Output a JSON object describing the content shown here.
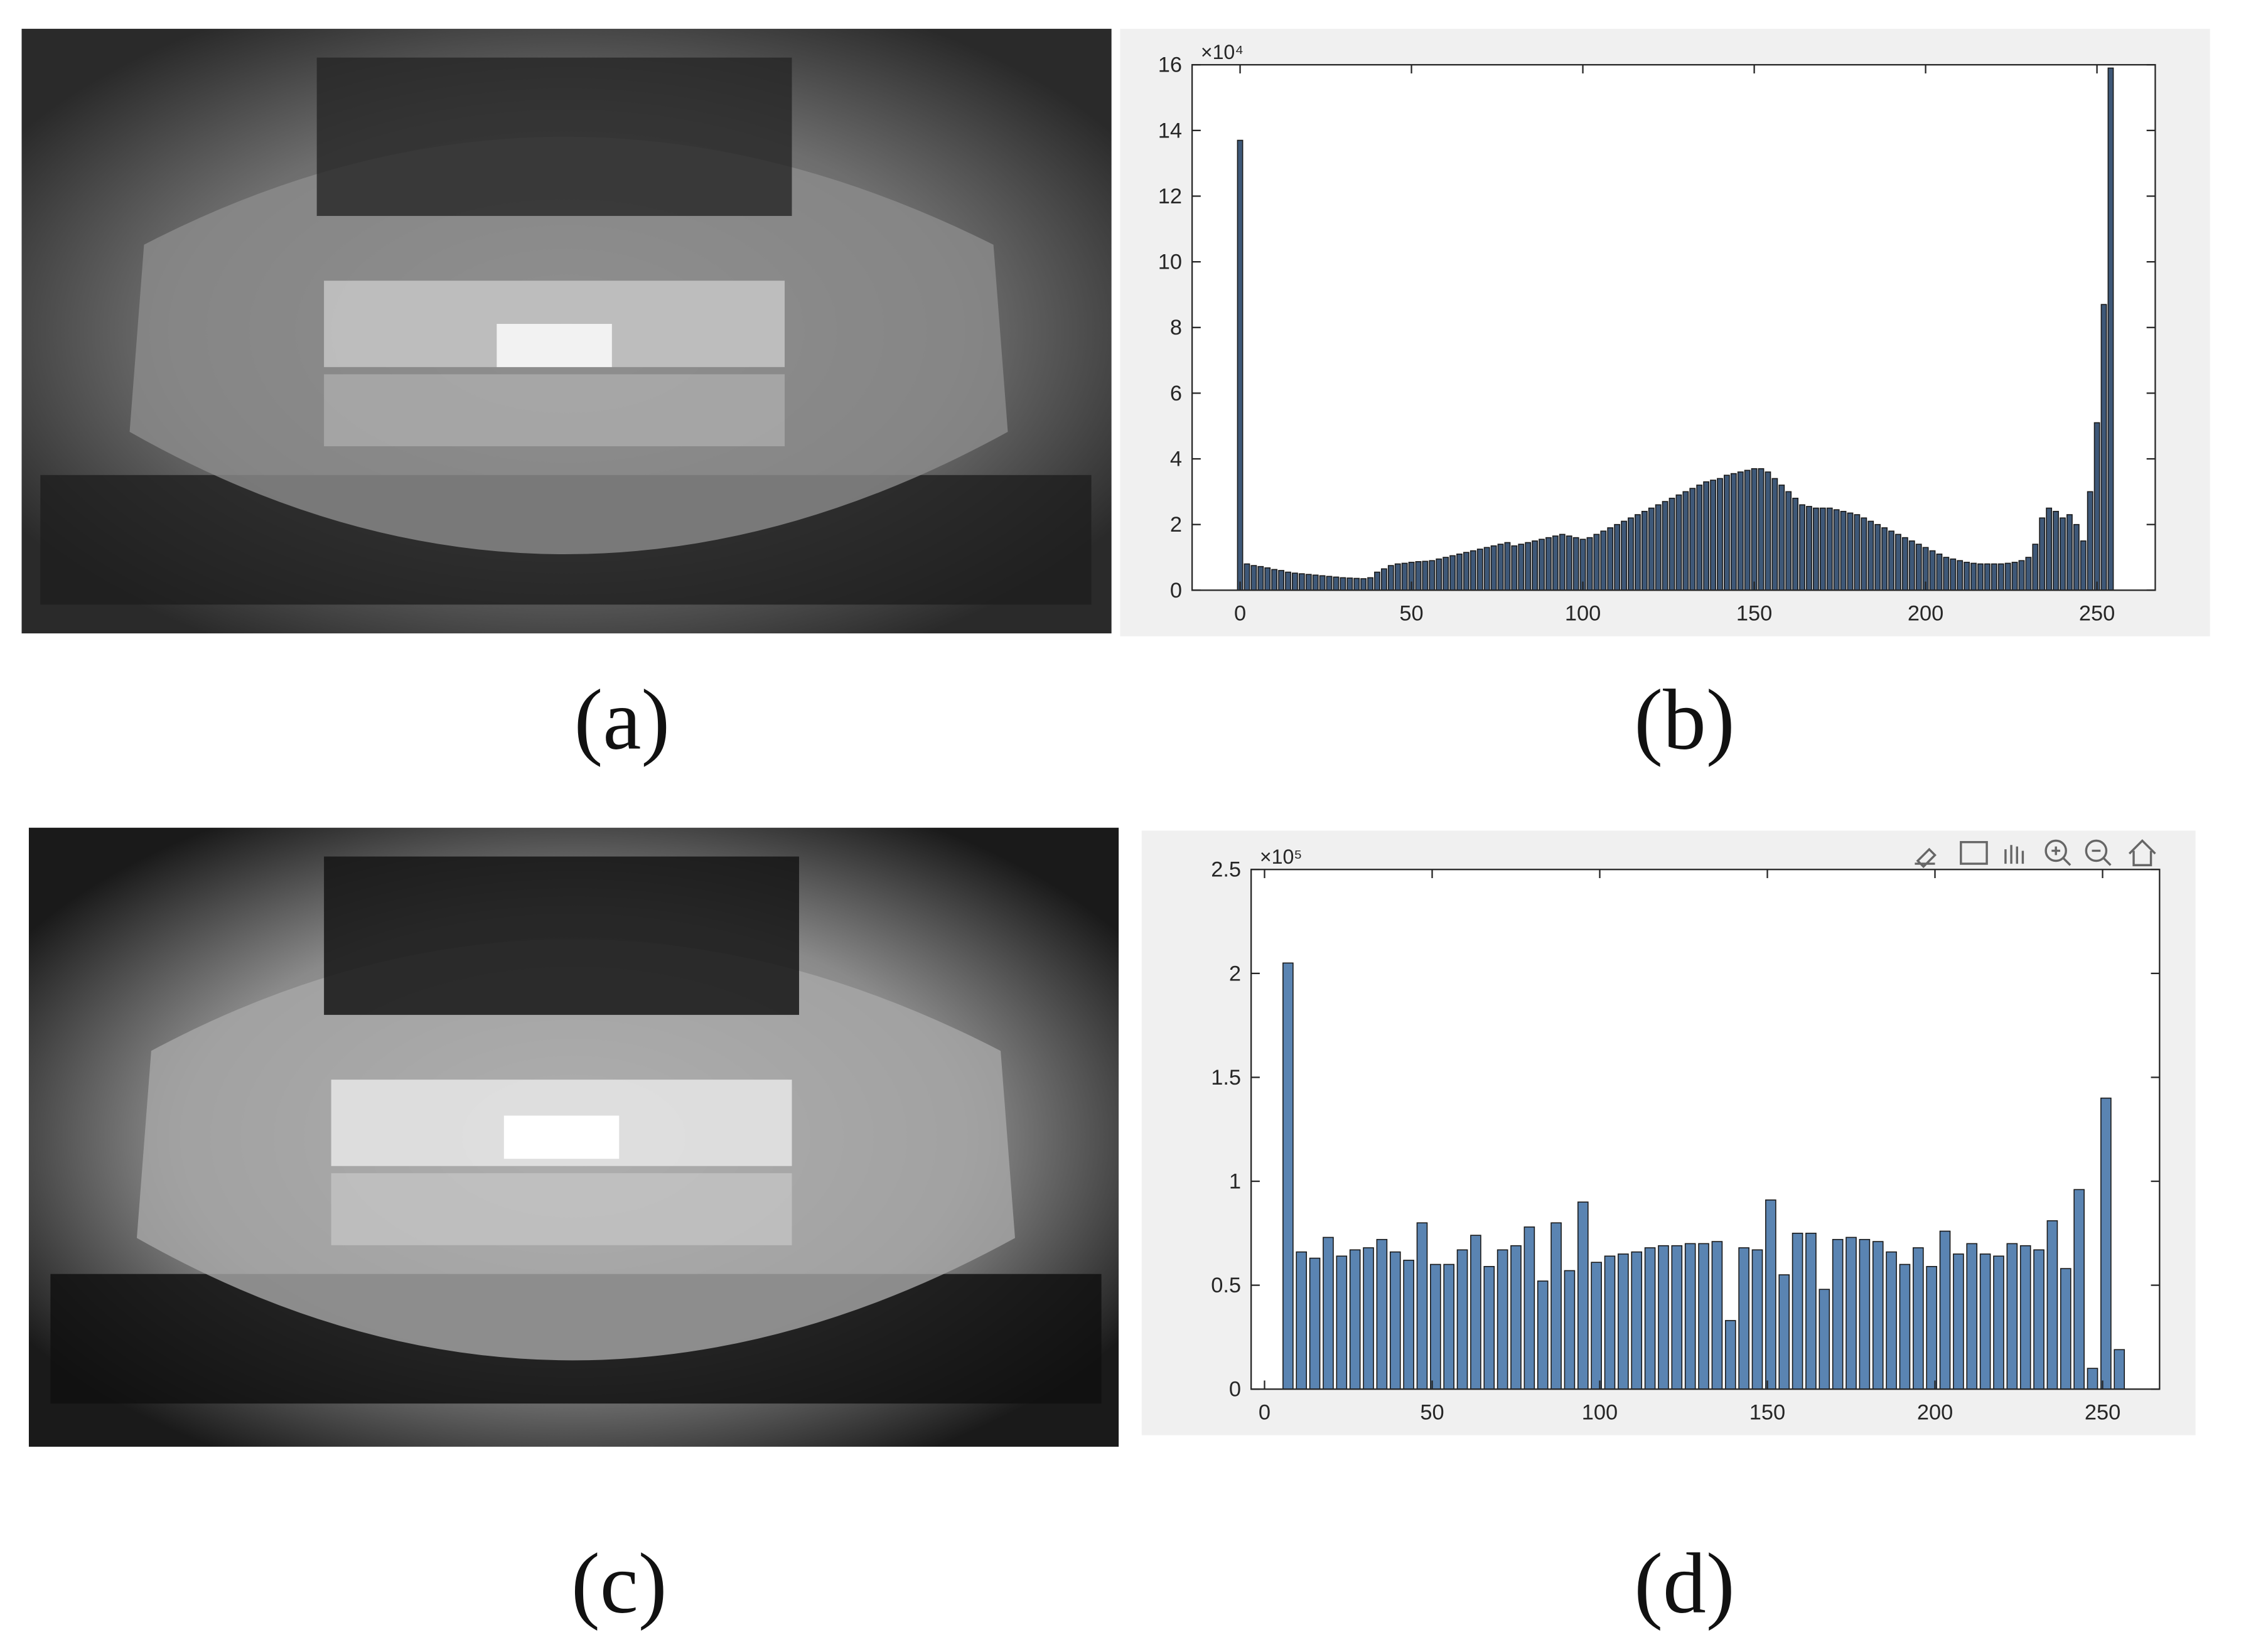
{
  "panels": {
    "labels": [
      "(a)",
      "(b)",
      "(c)",
      "(d)"
    ]
  },
  "chart_data": [
    {
      "type": "bar",
      "color": "#3e5878",
      "y_scale_label": "×10⁴",
      "x": [
        0,
        2,
        4,
        6,
        8,
        10,
        12,
        14,
        16,
        18,
        20,
        22,
        24,
        26,
        28,
        30,
        32,
        34,
        36,
        38,
        40,
        42,
        44,
        46,
        48,
        50,
        52,
        54,
        56,
        58,
        60,
        62,
        64,
        66,
        68,
        70,
        72,
        74,
        76,
        78,
        80,
        82,
        84,
        86,
        88,
        90,
        92,
        94,
        96,
        98,
        100,
        102,
        104,
        106,
        108,
        110,
        112,
        114,
        116,
        118,
        120,
        122,
        124,
        126,
        128,
        130,
        132,
        134,
        136,
        138,
        140,
        142,
        144,
        146,
        148,
        150,
        152,
        154,
        156,
        158,
        160,
        162,
        164,
        166,
        168,
        170,
        172,
        174,
        176,
        178,
        180,
        182,
        184,
        186,
        188,
        190,
        192,
        194,
        196,
        198,
        200,
        202,
        204,
        206,
        208,
        210,
        212,
        214,
        216,
        218,
        220,
        222,
        224,
        226,
        228,
        230,
        232,
        234,
        236,
        238,
        240,
        242,
        244,
        246,
        248,
        250,
        252,
        254
      ],
      "values": [
        13.7,
        0.8,
        0.75,
        0.72,
        0.68,
        0.63,
        0.6,
        0.55,
        0.52,
        0.5,
        0.48,
        0.46,
        0.44,
        0.42,
        0.4,
        0.38,
        0.37,
        0.36,
        0.35,
        0.38,
        0.55,
        0.65,
        0.75,
        0.8,
        0.82,
        0.85,
        0.87,
        0.88,
        0.9,
        0.95,
        1.0,
        1.05,
        1.1,
        1.15,
        1.2,
        1.25,
        1.3,
        1.35,
        1.4,
        1.45,
        1.35,
        1.4,
        1.45,
        1.5,
        1.55,
        1.6,
        1.65,
        1.7,
        1.65,
        1.6,
        1.55,
        1.6,
        1.7,
        1.8,
        1.9,
        2.0,
        2.1,
        2.2,
        2.3,
        2.4,
        2.5,
        2.6,
        2.7,
        2.8,
        2.9,
        3.0,
        3.1,
        3.2,
        3.3,
        3.35,
        3.4,
        3.5,
        3.55,
        3.6,
        3.65,
        3.7,
        3.7,
        3.6,
        3.4,
        3.2,
        3.0,
        2.8,
        2.6,
        2.55,
        2.5,
        2.5,
        2.5,
        2.45,
        2.4,
        2.35,
        2.3,
        2.2,
        2.1,
        2.0,
        1.9,
        1.8,
        1.7,
        1.6,
        1.5,
        1.4,
        1.3,
        1.2,
        1.1,
        1.0,
        0.95,
        0.9,
        0.85,
        0.82,
        0.8,
        0.8,
        0.8,
        0.8,
        0.82,
        0.85,
        0.9,
        1.0,
        1.4,
        2.2,
        2.5,
        2.4,
        2.2,
        2.3,
        2.0,
        1.5,
        3.0,
        5.1,
        8.7,
        15.9
      ],
      "xlim": [
        -14,
        267
      ],
      "ylim": [
        0,
        16
      ],
      "xticks": [
        0,
        50,
        100,
        150,
        200,
        250
      ],
      "yticks": [
        0,
        2,
        4,
        6,
        8,
        10,
        12,
        14,
        16
      ]
    },
    {
      "type": "bar",
      "color": "#5a84b2",
      "y_scale_label": "×10⁵",
      "x": [
        7,
        11,
        15,
        19,
        23,
        27,
        31,
        35,
        39,
        43,
        47,
        51,
        55,
        59,
        63,
        67,
        71,
        75,
        79,
        83,
        87,
        91,
        95,
        99,
        103,
        107,
        111,
        115,
        119,
        123,
        127,
        131,
        135,
        139,
        143,
        147,
        151,
        155,
        159,
        163,
        167,
        171,
        175,
        179,
        183,
        187,
        191,
        195,
        199,
        203,
        207,
        211,
        215,
        219,
        223,
        227,
        231,
        235,
        239,
        243,
        247,
        251,
        255
      ],
      "values": [
        2.05,
        0.66,
        0.63,
        0.73,
        0.64,
        0.67,
        0.68,
        0.72,
        0.66,
        0.62,
        0.8,
        0.6,
        0.6,
        0.67,
        0.74,
        0.59,
        0.67,
        0.69,
        0.78,
        0.52,
        0.8,
        0.57,
        0.9,
        0.61,
        0.64,
        0.65,
        0.66,
        0.68,
        0.69,
        0.69,
        0.7,
        0.7,
        0.71,
        0.33,
        0.68,
        0.67,
        0.91,
        0.55,
        0.75,
        0.75,
        0.48,
        0.72,
        0.73,
        0.72,
        0.71,
        0.66,
        0.6,
        0.68,
        0.59,
        0.76,
        0.65,
        0.7,
        0.65,
        0.64,
        0.7,
        0.69,
        0.67,
        0.81,
        0.58,
        0.96,
        0.1,
        1.4,
        0.19
      ],
      "xlim": [
        -4,
        267
      ],
      "ylim": [
        0,
        2.5
      ],
      "xticks": [
        0,
        50,
        100,
        150,
        200,
        250
      ],
      "yticks": [
        0,
        0.5,
        1,
        1.5,
        2,
        2.5
      ]
    }
  ]
}
